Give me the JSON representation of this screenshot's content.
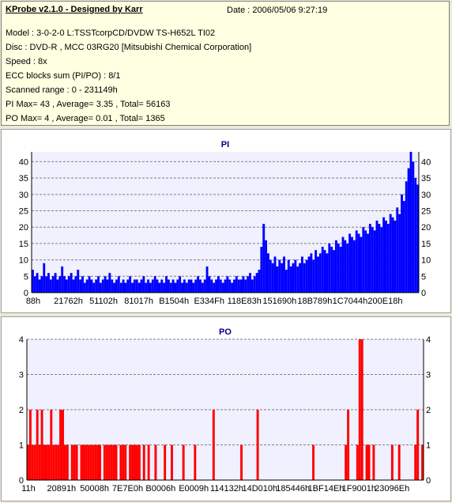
{
  "header": {
    "title": "KProbe v2.1.0 - Designed by Karr",
    "date": "Date : 2006/05/06 9:27:19",
    "lines": [
      "Model : 3-0-2-0 L:TSSTcorpCD/DVDW TS-H652L TI02",
      "Disc : DVD-R , MCC 03RG20   [Mitsubishi Chemical Corporation]",
      "Speed : 8x",
      "ECC blocks sum (PI/PO) : 8/1",
      "Scanned range : 0 - 231149h",
      "PI Max= 43 , Average= 3.35 , Total= 56163",
      "PO Max= 4 , Average= 0.01 , Total= 1365"
    ]
  },
  "colors": {
    "pi_bar": "#0000ff",
    "po_bar": "#ff0000",
    "plot_bg": "#f0f0ff",
    "title": "#000080"
  },
  "chart_data": [
    {
      "type": "bar",
      "title": "PI",
      "ylim": [
        0,
        43
      ],
      "y_ticks": [
        0,
        5,
        10,
        15,
        20,
        25,
        30,
        35,
        40
      ],
      "x_tick_labels": [
        "88h",
        "21762h",
        "51102h",
        "81017h",
        "B1504h",
        "E334Fh",
        "118E83h",
        "151690h",
        "18B789h",
        "1C7044h",
        "200E18h"
      ],
      "grid": true,
      "values": [
        7,
        5,
        6,
        4,
        5,
        9,
        5,
        6,
        4,
        5,
        6,
        4,
        5,
        8,
        5,
        4,
        5,
        6,
        4,
        5,
        7,
        4,
        5,
        3,
        4,
        5,
        4,
        3,
        4,
        5,
        3,
        4,
        5,
        4,
        6,
        4,
        3,
        4,
        5,
        3,
        4,
        3,
        4,
        5,
        3,
        4,
        4,
        3,
        4,
        5,
        3,
        4,
        3,
        4,
        5,
        4,
        3,
        4,
        3,
        5,
        4,
        3,
        4,
        3,
        4,
        5,
        3,
        4,
        3,
        4,
        4,
        3,
        4,
        5,
        4,
        3,
        4,
        8,
        5,
        4,
        3,
        4,
        5,
        4,
        3,
        4,
        5,
        4,
        3,
        4,
        5,
        4,
        4,
        5,
        4,
        5,
        6,
        4,
        5,
        6,
        7,
        14,
        21,
        16,
        12,
        10,
        9,
        11,
        8,
        10,
        9,
        11,
        7,
        10,
        8,
        9,
        10,
        8,
        9,
        11,
        9,
        10,
        11,
        12,
        10,
        13,
        11,
        12,
        14,
        13,
        12,
        15,
        14,
        13,
        16,
        15,
        14,
        17,
        16,
        15,
        18,
        17,
        16,
        19,
        18,
        17,
        20,
        19,
        18,
        21,
        20,
        19,
        22,
        21,
        20,
        23,
        22,
        21,
        24,
        23,
        22,
        26,
        24,
        30,
        28,
        34,
        38,
        43,
        40,
        35,
        33
      ]
    },
    {
      "type": "bar",
      "title": "PO",
      "ylim": [
        0,
        4
      ],
      "y_ticks": [
        0,
        1,
        2,
        3,
        4
      ],
      "x_tick_labels": [
        "11h",
        "20891h",
        "50008h",
        "7E7E0h",
        "B0006h",
        "E0009h",
        "114132h",
        "14D010h",
        "185446h",
        "1BF14Eh",
        "1F9001h",
        "23096Eh"
      ],
      "grid": true,
      "values": [
        1,
        2,
        1,
        1,
        2,
        1,
        2,
        1,
        1,
        1,
        2,
        1,
        1,
        1,
        2,
        2,
        1,
        1,
        0,
        1,
        1,
        1,
        0,
        1,
        1,
        1,
        1,
        1,
        1,
        1,
        1,
        1,
        0,
        1,
        1,
        1,
        1,
        1,
        1,
        0,
        1,
        1,
        1,
        0,
        1,
        1,
        1,
        1,
        1,
        0,
        1,
        0,
        1,
        0,
        0,
        1,
        0,
        0,
        0,
        1,
        0,
        0,
        1,
        0,
        0,
        0,
        0,
        1,
        0,
        0,
        0,
        0,
        1,
        0,
        0,
        0,
        0,
        0,
        0,
        0,
        2,
        0,
        0,
        0,
        0,
        0,
        0,
        0,
        0,
        0,
        0,
        0,
        1,
        0,
        0,
        0,
        0,
        0,
        0,
        2,
        0,
        0,
        0,
        0,
        0,
        0,
        0,
        0,
        0,
        0,
        0,
        0,
        0,
        0,
        0,
        0,
        0,
        0,
        0,
        0,
        0,
        0,
        0,
        1,
        0,
        0,
        0,
        0,
        0,
        0,
        0,
        0,
        0,
        0,
        0,
        0,
        0,
        1,
        2,
        0,
        0,
        0,
        1,
        4,
        4,
        0,
        1,
        1,
        0,
        1,
        0,
        0,
        0,
        0,
        0,
        0,
        0,
        1,
        0,
        0,
        1,
        0,
        0,
        0,
        0,
        0,
        0,
        1,
        2,
        0,
        1
      ]
    }
  ]
}
